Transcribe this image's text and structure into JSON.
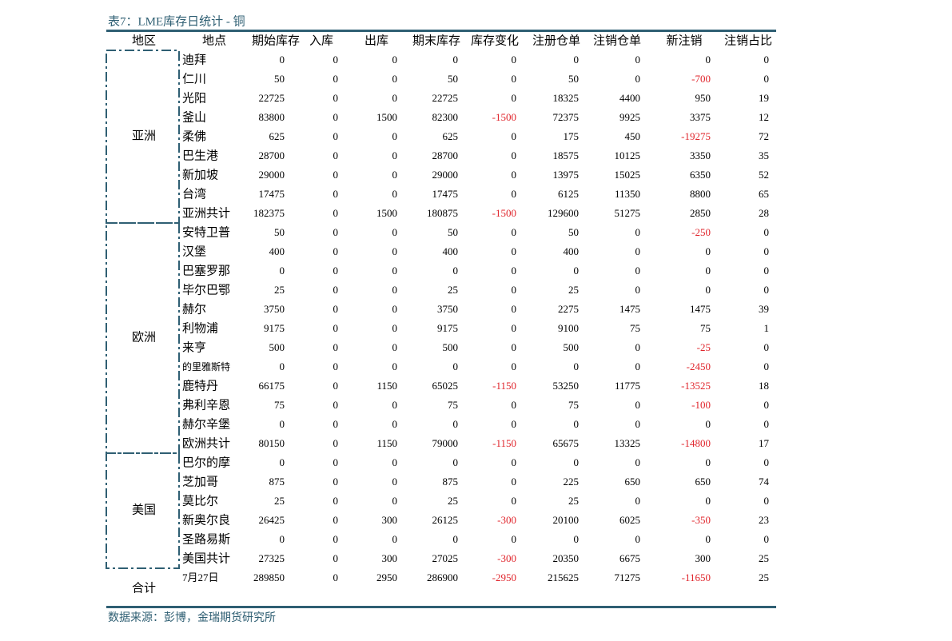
{
  "title": "表7：LME库存日统计 - 铜",
  "headers": [
    "地区",
    "地点",
    "期始库存",
    "入库",
    "出库",
    "期末库存",
    "库存变化",
    "注册仓单",
    "注销仓单",
    "新注销",
    "注销占比"
  ],
  "groups": [
    {
      "region": "亚洲",
      "rows": [
        [
          "迪拜",
          0,
          0,
          0,
          0,
          0,
          0,
          0,
          0,
          0
        ],
        [
          "仁川",
          50,
          0,
          0,
          50,
          0,
          50,
          0,
          -700,
          0
        ],
        [
          "光阳",
          22725,
          0,
          0,
          22725,
          0,
          18325,
          4400,
          950,
          19
        ],
        [
          "釜山",
          83800,
          0,
          1500,
          82300,
          -1500,
          72375,
          9925,
          3375,
          12
        ],
        [
          "柔佛",
          625,
          0,
          0,
          625,
          0,
          175,
          450,
          -19275,
          72
        ],
        [
          "巴生港",
          28700,
          0,
          0,
          28700,
          0,
          18575,
          10125,
          3350,
          35
        ],
        [
          "新加坡",
          29000,
          0,
          0,
          29000,
          0,
          13975,
          15025,
          6350,
          52
        ],
        [
          "台湾",
          17475,
          0,
          0,
          17475,
          0,
          6125,
          11350,
          8800,
          65
        ],
        [
          "亚洲共计",
          182375,
          0,
          1500,
          180875,
          -1500,
          129600,
          51275,
          2850,
          28
        ]
      ]
    },
    {
      "region": "欧洲",
      "rows": [
        [
          "安特卫普",
          50,
          0,
          0,
          50,
          0,
          50,
          0,
          -250,
          0
        ],
        [
          "汉堡",
          400,
          0,
          0,
          400,
          0,
          400,
          0,
          0,
          0
        ],
        [
          "巴塞罗那",
          0,
          0,
          0,
          0,
          0,
          0,
          0,
          0,
          0
        ],
        [
          "毕尔巴鄂",
          25,
          0,
          0,
          25,
          0,
          25,
          0,
          0,
          0
        ],
        [
          "赫尔",
          3750,
          0,
          0,
          3750,
          0,
          2275,
          1475,
          1475,
          39
        ],
        [
          "利物浦",
          9175,
          0,
          0,
          9175,
          0,
          9100,
          75,
          75,
          1
        ],
        [
          "来亨",
          500,
          0,
          0,
          500,
          0,
          500,
          0,
          -25,
          0
        ],
        [
          "的里雅斯特",
          0,
          0,
          0,
          0,
          0,
          0,
          0,
          -2450,
          0
        ],
        [
          "鹿特丹",
          66175,
          0,
          1150,
          65025,
          -1150,
          53250,
          11775,
          -13525,
          18
        ],
        [
          "弗利辛恩",
          75,
          0,
          0,
          75,
          0,
          75,
          0,
          -100,
          0
        ],
        [
          "赫尔辛堡",
          0,
          0,
          0,
          0,
          0,
          0,
          0,
          0,
          0
        ],
        [
          "欧洲共计",
          80150,
          0,
          1150,
          79000,
          -1150,
          65675,
          13325,
          -14800,
          17
        ]
      ]
    },
    {
      "region": "美国",
      "rows": [
        [
          "巴尔的摩",
          0,
          0,
          0,
          0,
          0,
          0,
          0,
          0,
          0
        ],
        [
          "芝加哥",
          875,
          0,
          0,
          875,
          0,
          225,
          650,
          650,
          74
        ],
        [
          "莫比尔",
          25,
          0,
          0,
          25,
          0,
          25,
          0,
          0,
          0
        ],
        [
          "新奥尔良",
          26425,
          0,
          300,
          26125,
          -300,
          20100,
          6025,
          -350,
          23
        ],
        [
          "圣路易斯",
          0,
          0,
          0,
          0,
          0,
          0,
          0,
          0,
          0
        ],
        [
          "美国共计",
          27325,
          0,
          300,
          27025,
          -300,
          20350,
          6675,
          300,
          25
        ]
      ]
    }
  ],
  "total": {
    "label": "合计",
    "date": "7月27日",
    "values": [
      289850,
      0,
      2950,
      286900,
      -2950,
      215625,
      71275,
      -11650,
      25
    ]
  },
  "source": "数据来源：彭博，金瑞期货研究所"
}
